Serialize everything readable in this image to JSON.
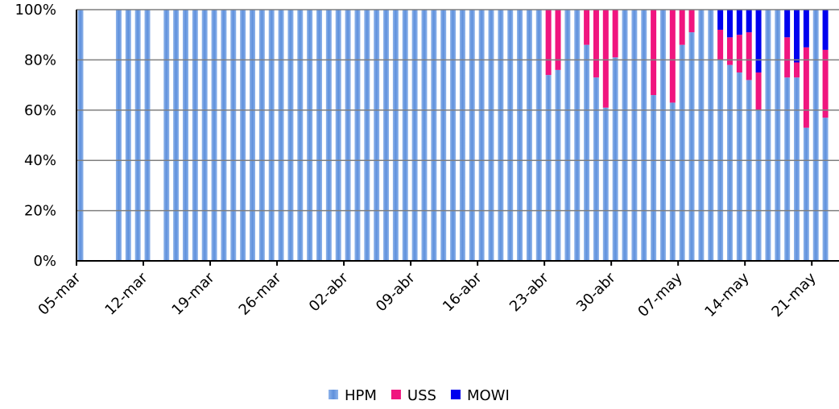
{
  "chart_data": {
    "type": "stacked_bar",
    "categories": [
      "05-mar",
      null,
      null,
      null,
      null,
      null,
      null,
      "12-mar",
      null,
      null,
      null,
      null,
      null,
      null,
      "19-mar",
      null,
      null,
      null,
      null,
      null,
      null,
      "26-mar",
      null,
      null,
      null,
      null,
      null,
      null,
      "02-abr",
      null,
      null,
      null,
      null,
      null,
      null,
      "09-abr",
      null,
      null,
      null,
      null,
      null,
      null,
      "16-abr",
      null,
      null,
      null,
      null,
      null,
      null,
      "23-abr",
      null,
      null,
      null,
      null,
      null,
      null,
      "30-abr",
      null,
      null,
      null,
      null,
      null,
      null,
      "07-may",
      null,
      null,
      null,
      null,
      null,
      null,
      "14-may",
      null,
      null,
      null,
      null,
      null,
      null,
      "21-may",
      null
    ],
    "series": [
      {
        "name": "HPM",
        "color": "#6f9fe0",
        "values": [
          100,
          null,
          null,
          null,
          100,
          100,
          100,
          100,
          null,
          100,
          100,
          100,
          100,
          100,
          100,
          100,
          100,
          100,
          100,
          100,
          100,
          100,
          100,
          100,
          100,
          100,
          100,
          100,
          100,
          100,
          100,
          100,
          100,
          100,
          100,
          100,
          100,
          100,
          100,
          100,
          100,
          100,
          100,
          100,
          100,
          100,
          100,
          100,
          100,
          74,
          76,
          100,
          100,
          86,
          73,
          61,
          81,
          100,
          100,
          100,
          66,
          100,
          63,
          86,
          91,
          100,
          100,
          80,
          78,
          75,
          72,
          60,
          100,
          100,
          73,
          73,
          53,
          100,
          57
        ]
      },
      {
        "name": "USS",
        "color": "#f0157f",
        "values": [
          0,
          null,
          null,
          null,
          0,
          0,
          0,
          0,
          null,
          0,
          0,
          0,
          0,
          0,
          0,
          0,
          0,
          0,
          0,
          0,
          0,
          0,
          0,
          0,
          0,
          0,
          0,
          0,
          0,
          0,
          0,
          0,
          0,
          0,
          0,
          0,
          0,
          0,
          0,
          0,
          0,
          0,
          0,
          0,
          0,
          0,
          0,
          0,
          0,
          26,
          24,
          0,
          0,
          14,
          27,
          39,
          19,
          0,
          0,
          0,
          34,
          0,
          37,
          14,
          9,
          0,
          0,
          12,
          11,
          15,
          19,
          15,
          0,
          0,
          16,
          6,
          32,
          0,
          27
        ]
      },
      {
        "name": "MOWI",
        "color": "#0000ee",
        "values": [
          0,
          null,
          null,
          null,
          0,
          0,
          0,
          0,
          null,
          0,
          0,
          0,
          0,
          0,
          0,
          0,
          0,
          0,
          0,
          0,
          0,
          0,
          0,
          0,
          0,
          0,
          0,
          0,
          0,
          0,
          0,
          0,
          0,
          0,
          0,
          0,
          0,
          0,
          0,
          0,
          0,
          0,
          0,
          0,
          0,
          0,
          0,
          0,
          0,
          0,
          0,
          0,
          0,
          0,
          0,
          0,
          0,
          0,
          0,
          0,
          0,
          0,
          0,
          0,
          0,
          0,
          0,
          8,
          11,
          10,
          9,
          25,
          0,
          0,
          11,
          21,
          15,
          0,
          16
        ]
      }
    ],
    "ylim": [
      0,
      100
    ],
    "yticks": [
      {
        "value": 0,
        "label": "0%"
      },
      {
        "value": 20,
        "label": "20%"
      },
      {
        "value": 40,
        "label": "40%"
      },
      {
        "value": 60,
        "label": "60%"
      },
      {
        "value": 80,
        "label": "80%"
      },
      {
        "value": 100,
        "label": "100%"
      }
    ],
    "grid": true,
    "legend": "bottom"
  }
}
